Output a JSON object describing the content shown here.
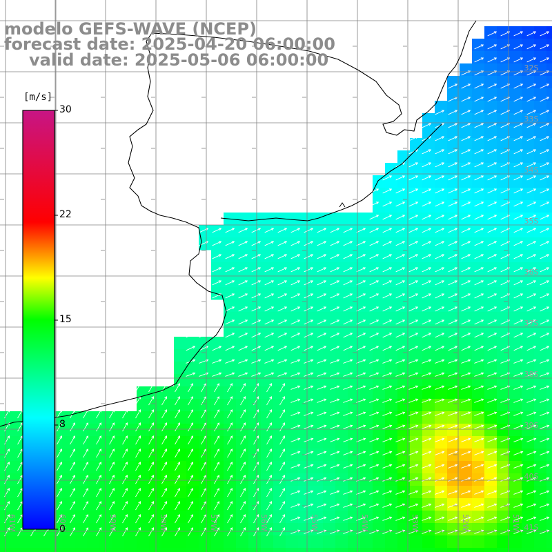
{
  "title": {
    "model": "modelo GEFS-WAVE (NCEP)",
    "forecast": "forecast date: 2025-04-20 06:00:00",
    "valid": "valid date: 2025-05-06 06:00:00"
  },
  "colorbar": {
    "unit": "[m/s]",
    "ticks": [
      "30",
      "22",
      "15",
      "8",
      "0"
    ],
    "tick_values": [
      30,
      22,
      15,
      8,
      0
    ],
    "colors": [
      "#0000ff",
      "#00ffff",
      "#00ff00",
      "#ffff00",
      "#ff0000",
      "#c71585"
    ]
  },
  "axes": {
    "lat_labels": [
      "32S",
      "33S",
      "34S",
      "35S",
      "36S",
      "37S",
      "38S",
      "39S",
      "40S",
      "41S"
    ],
    "lon_labels": [
      "61W",
      "60W",
      "59W",
      "58W",
      "57W",
      "56W",
      "55W",
      "54W",
      "53W",
      "52W",
      "51W"
    ],
    "lat_range": [
      -41.5,
      -31.0
    ],
    "lon_range": [
      -61.0,
      -50.0
    ]
  },
  "map": {
    "land_color": "#ffffff",
    "coast_color": "#000000",
    "grid_color": "#808080",
    "arrow_color": "#ffffff"
  }
}
